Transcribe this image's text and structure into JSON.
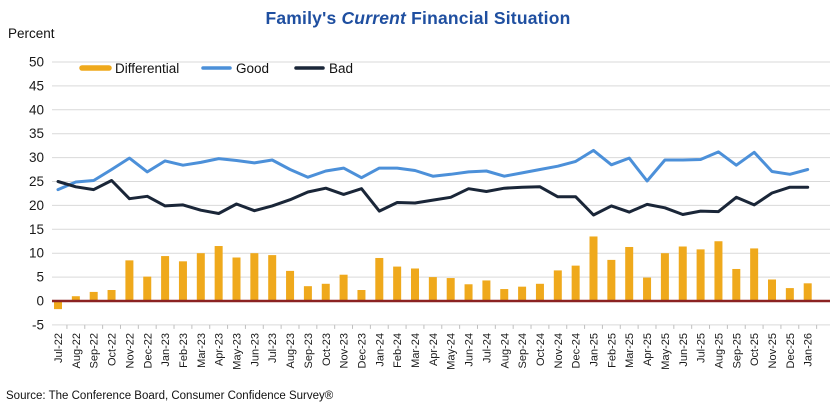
{
  "title": {
    "prefix": "Family's ",
    "emphasis": "Current",
    "suffix": " Financial Situation"
  },
  "y_axis_label": "Percent",
  "source": "Source: The Conference Board, Consumer Confidence Survey®",
  "colors": {
    "title": "#1F4FA0",
    "differential_bar": "#EFA91C",
    "good_line": "#4C90D9",
    "bad_line": "#1A2638",
    "zero_line": "#8B2222",
    "gridline": "#D9D9D9",
    "tick": "#BFBFBF",
    "axis_text": "#1a1a1a"
  },
  "chart_data": {
    "type": "bar+line combo",
    "title": "Family's Current Financial Situation",
    "xlabel": "",
    "ylabel": "Percent",
    "ylim": [
      -5,
      50
    ],
    "ytick_step": 5,
    "grid": true,
    "legend_position": "top-left-inside",
    "legend": [
      "Differential",
      "Good",
      "Bad"
    ],
    "categories": [
      "Jul-22",
      "Aug-22",
      "Sep-22",
      "Oct-22",
      "Nov-22",
      "Dec-22",
      "Jan-23",
      "Feb-23",
      "Mar-23",
      "Apr-23",
      "May-23",
      "Jun-23",
      "Jul-23",
      "Aug-23",
      "Sep-23",
      "Oct-23",
      "Nov-23",
      "Dec-23",
      "Jan-24",
      "Feb-24",
      "Mar-24",
      "Apr-24",
      "May-24",
      "Jun-24",
      "Jul-24",
      "Aug-24",
      "Sep-24",
      "Oct-24",
      "Nov-24",
      "Dec-24",
      "Jan-25",
      "Feb-25",
      "Mar-25",
      "Apr-25",
      "May-25",
      "Jun-25",
      "Jul-25",
      "Aug-25",
      "Sep-25",
      "Oct-25",
      "Nov-25",
      "Dec-25",
      "Jan-26"
    ],
    "series": [
      {
        "name": "Differential",
        "type": "bar",
        "color": "#EFA91C",
        "values": [
          -1.7,
          1.0,
          1.9,
          2.3,
          8.5,
          5.1,
          9.4,
          8.3,
          10.0,
          11.5,
          9.1,
          10.0,
          9.6,
          6.3,
          3.1,
          3.6,
          5.5,
          2.3,
          9.0,
          7.2,
          6.8,
          5.0,
          4.8,
          3.5,
          4.3,
          2.5,
          3.0,
          3.6,
          6.4,
          7.4,
          13.5,
          8.6,
          11.3,
          4.9,
          10.0,
          11.4,
          10.8,
          12.5,
          6.7,
          11.0,
          4.5,
          2.7,
          3.7
        ]
      },
      {
        "name": "Good",
        "type": "line",
        "color": "#4C90D9",
        "values": [
          23.3,
          24.9,
          25.2,
          27.5,
          29.9,
          27.0,
          29.3,
          28.4,
          29.0,
          29.8,
          29.4,
          28.9,
          29.5,
          27.5,
          25.9,
          27.2,
          27.8,
          25.8,
          27.8,
          27.8,
          27.3,
          26.1,
          26.5,
          27.0,
          27.2,
          26.1,
          26.8,
          27.5,
          28.2,
          29.2,
          31.5,
          28.5,
          29.9,
          25.1,
          29.5,
          29.5,
          29.6,
          31.2,
          28.4,
          31.1,
          27.1,
          26.5,
          27.5
        ]
      },
      {
        "name": "Bad",
        "type": "line",
        "color": "#1A2638",
        "values": [
          25.0,
          23.9,
          23.3,
          25.2,
          21.4,
          21.9,
          19.9,
          20.1,
          19.0,
          18.3,
          20.3,
          18.9,
          19.9,
          21.2,
          22.8,
          23.6,
          22.3,
          23.5,
          18.8,
          20.6,
          20.5,
          21.1,
          21.7,
          23.5,
          22.9,
          23.6,
          23.8,
          23.9,
          21.8,
          21.8,
          18.0,
          19.9,
          18.6,
          20.2,
          19.5,
          18.1,
          18.8,
          18.7,
          21.7,
          20.1,
          22.6,
          23.8,
          23.8
        ]
      }
    ]
  }
}
